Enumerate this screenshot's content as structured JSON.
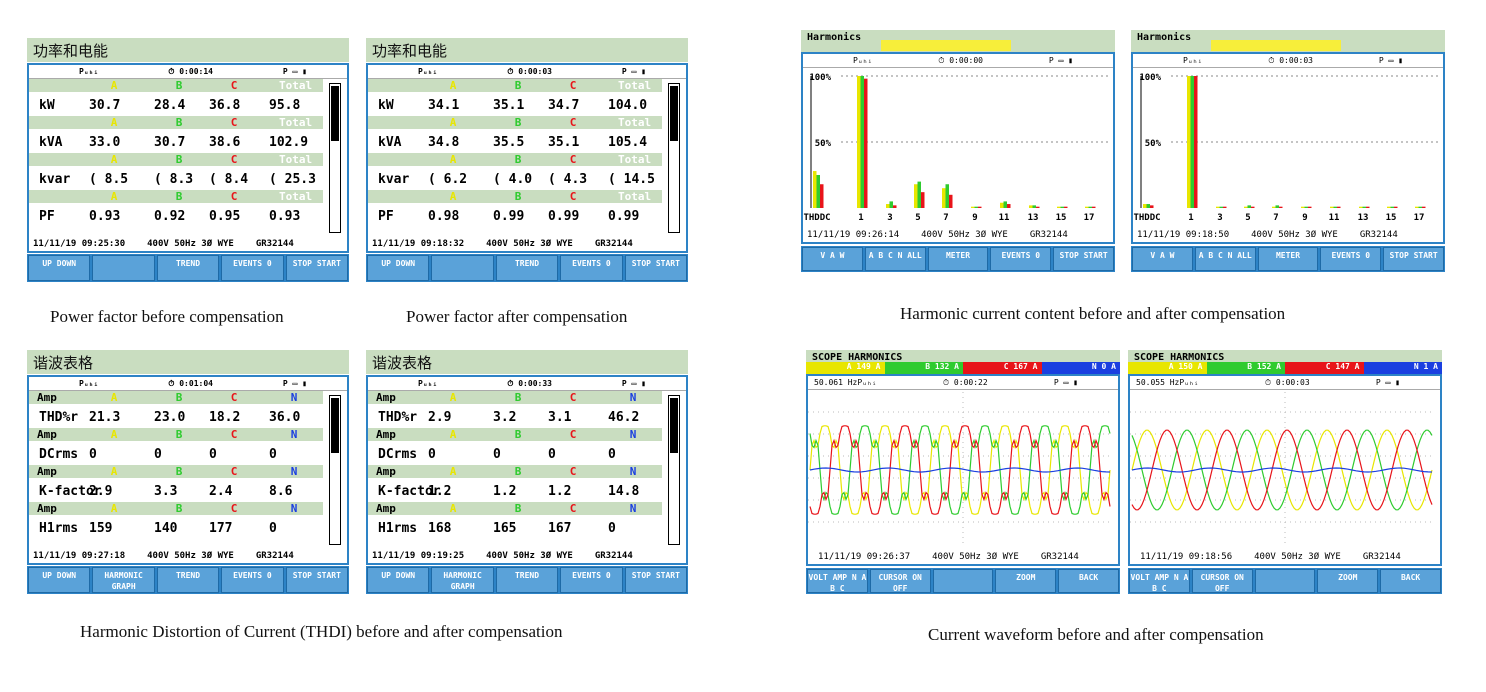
{
  "captions": {
    "pf": [
      "Power factor before compensation",
      "Power factor after compensation"
    ],
    "harm": "Harmonic current content before and after compensation",
    "thd": "Harmonic Distortion of Current (THDI) before and after compensation",
    "wave": "Current waveform before and after compensation"
  },
  "colors": {
    "A": "#e8e600",
    "B": "#2fcb2f",
    "C": "#e8141a",
    "N": "#1a3fe0",
    "accent": "#2d83c6",
    "header": "#c9ddc0"
  },
  "power_panels": [
    {
      "title": "功率和电能",
      "mode": "Pᵤₕᵢ",
      "timer": "0:00:14",
      "rows": [
        {
          "label": "kW",
          "vals": [
            "30.7",
            "28.4",
            "36.8",
            "95.8"
          ]
        },
        {
          "label": "kVA",
          "vals": [
            "33.0",
            "30.7",
            "38.6",
            "102.9"
          ]
        },
        {
          "label": "kvar",
          "vals": [
            "8.5",
            "8.3",
            "8.4",
            "25.3"
          ]
        },
        {
          "label": "PF",
          "vals": [
            "0.93",
            "0.92",
            "0.95",
            "0.93"
          ]
        }
      ],
      "date": "11/11/19",
      "time": "09:25:30",
      "volt": "400V",
      "freq": "50Hz",
      "conn": "3Ø WYE",
      "id": "GR32144",
      "buttons": [
        "UP DOWN",
        "",
        "TREND",
        "EVENTS 0",
        "STOP START"
      ]
    },
    {
      "title": "功率和电能",
      "mode": "Pᵤₕᵢ",
      "timer": "0:00:03",
      "rows": [
        {
          "label": "kW",
          "vals": [
            "34.1",
            "35.1",
            "34.7",
            "104.0"
          ]
        },
        {
          "label": "kVA",
          "vals": [
            "34.8",
            "35.5",
            "35.1",
            "105.4"
          ]
        },
        {
          "label": "kvar",
          "vals": [
            "6.2",
            "4.0",
            "4.3",
            "14.5"
          ]
        },
        {
          "label": "PF",
          "vals": [
            "0.98",
            "0.99",
            "0.99",
            "0.99"
          ]
        }
      ],
      "date": "11/11/19",
      "time": "09:18:32",
      "volt": "400V",
      "freq": "50Hz",
      "conn": "3Ø WYE",
      "id": "GR32144",
      "buttons": [
        "UP DOWN",
        "",
        "TREND",
        "EVENTS 0",
        "STOP START"
      ]
    }
  ],
  "phase_headers": [
    "A",
    "B",
    "C",
    "Total"
  ],
  "thd_panels": [
    {
      "title": "谐波表格",
      "mode": "Pᵤₕᵢ",
      "timer": "0:01:04",
      "rows": [
        {
          "label": "THD%r",
          "vals": [
            "21.3",
            "23.0",
            "18.2",
            "36.0"
          ]
        },
        {
          "label": "DCrms",
          "vals": [
            "0",
            "0",
            "0",
            "0"
          ]
        },
        {
          "label": "K-factor",
          "vals": [
            "2.9",
            "3.3",
            "2.4",
            "8.6"
          ]
        },
        {
          "label": "H1rms",
          "vals": [
            "159",
            "140",
            "177",
            "0"
          ]
        }
      ],
      "unit": "Amp",
      "date": "11/11/19",
      "time": "09:27:18",
      "volt": "400V",
      "freq": "50Hz",
      "conn": "3Ø WYE",
      "id": "GR32144",
      "buttons": [
        "UP DOWN",
        "HARMONIC GRAPH",
        "TREND",
        "EVENTS 0",
        "STOP START"
      ]
    },
    {
      "title": "谐波表格",
      "mode": "Pᵤₕᵢ",
      "timer": "0:00:33",
      "rows": [
        {
          "label": "THD%r",
          "vals": [
            "2.9",
            "3.2",
            "3.1",
            "46.2"
          ]
        },
        {
          "label": "DCrms",
          "vals": [
            "0",
            "0",
            "0",
            "0"
          ]
        },
        {
          "label": "K-factor",
          "vals": [
            "1.2",
            "1.2",
            "1.2",
            "14.8"
          ]
        },
        {
          "label": "H1rms",
          "vals": [
            "168",
            "165",
            "167",
            "0"
          ]
        }
      ],
      "unit": "Amp",
      "date": "11/11/19",
      "time": "09:19:25",
      "volt": "400V",
      "freq": "50Hz",
      "conn": "3Ø WYE",
      "id": "GR32144",
      "buttons": [
        "UP DOWN",
        "HARMONIC GRAPH",
        "TREND",
        "EVENTS 0",
        "STOP START"
      ]
    }
  ],
  "thd_headers": [
    "A",
    "B",
    "C",
    "N"
  ],
  "harm_panels": [
    {
      "title": "Harmonics",
      "timer": "0:00:00",
      "date": "11/11/19",
      "time": "09:26:14",
      "volt": "400V",
      "freq": "50Hz",
      "conn": "3Ø WYE",
      "id": "GR32144",
      "y_ticks": [
        "100%",
        "50%"
      ],
      "x_labels": [
        "THDDC",
        "1",
        "3",
        "5",
        "7",
        "9",
        "11",
        "13",
        "15",
        "17"
      ],
      "buttons": [
        "V A W",
        "A B C N ALL",
        "METER",
        "EVENTS 0",
        "STOP START"
      ],
      "bars": [
        [
          0.28,
          0.25,
          0.18
        ],
        [
          1.0,
          1.0,
          0.98
        ],
        [
          0.03,
          0.05,
          0.02
        ],
        [
          0.18,
          0.2,
          0.12
        ],
        [
          0.15,
          0.18,
          0.1
        ],
        [
          0.01,
          0.01,
          0.01
        ],
        [
          0.04,
          0.05,
          0.03
        ],
        [
          0.02,
          0.02,
          0.01
        ],
        [
          0.01,
          0.01,
          0.01
        ],
        [
          0.01,
          0.01,
          0.01
        ]
      ]
    },
    {
      "title": "Harmonics",
      "timer": "0:00:03",
      "date": "11/11/19",
      "time": "09:18:50",
      "volt": "400V",
      "freq": "50Hz",
      "conn": "3Ø WYE",
      "id": "GR32144",
      "y_ticks": [
        "100%",
        "50%"
      ],
      "x_labels": [
        "THDDC",
        "1",
        "3",
        "5",
        "7",
        "9",
        "11",
        "13",
        "15",
        "17"
      ],
      "buttons": [
        "V A W",
        "A B C N ALL",
        "METER",
        "EVENTS 0",
        "STOP START"
      ],
      "bars": [
        [
          0.03,
          0.03,
          0.02
        ],
        [
          1.0,
          1.0,
          1.0
        ],
        [
          0.01,
          0.01,
          0.01
        ],
        [
          0.01,
          0.02,
          0.01
        ],
        [
          0.01,
          0.02,
          0.01
        ],
        [
          0.01,
          0.01,
          0.01
        ],
        [
          0.01,
          0.01,
          0.01
        ],
        [
          0.01,
          0.01,
          0.01
        ],
        [
          0.01,
          0.01,
          0.01
        ],
        [
          0.01,
          0.01,
          0.01
        ]
      ]
    }
  ],
  "scope_panels": [
    {
      "title": "SCOPE HARMONICS",
      "legend": [
        "149 A",
        "132 A",
        "167 A",
        "0 A"
      ],
      "freq_readout": "50.061 Hz",
      "timer": "0:00:22",
      "date": "11/11/19",
      "time": "09:26:37",
      "volt": "400V",
      "freq": "50Hz",
      "conn": "3Ø WYE",
      "id": "GR32144",
      "distorted": true,
      "buttons": [
        "VOLT AMP N A B C",
        "CURSOR ON OFF",
        "",
        "ZOOM",
        "BACK"
      ]
    },
    {
      "title": "SCOPE HARMONICS",
      "legend": [
        "150 A",
        "152 A",
        "147 A",
        "1 A"
      ],
      "freq_readout": "50.055 Hz",
      "timer": "0:00:03",
      "date": "11/11/19",
      "time": "09:18:56",
      "volt": "400V",
      "freq": "50Hz",
      "conn": "3Ø WYE",
      "id": "GR32144",
      "distorted": false,
      "buttons": [
        "VOLT AMP N A B C",
        "CURSOR ON OFF",
        "",
        "ZOOM",
        "BACK"
      ]
    }
  ]
}
